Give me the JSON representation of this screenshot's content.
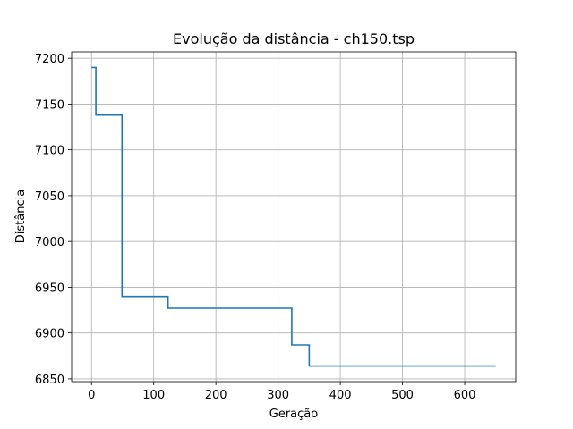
{
  "chart_data": {
    "type": "line",
    "title": "Evolução da distância - ch150.tsp",
    "xlabel": "Geração",
    "ylabel": "Distância",
    "xlim": [
      -32,
      682
    ],
    "ylim": [
      6847,
      7207
    ],
    "xticks": [
      0,
      100,
      200,
      300,
      400,
      500,
      600
    ],
    "yticks": [
      6850,
      6900,
      6950,
      7000,
      7050,
      7100,
      7150,
      7200
    ],
    "grid": true,
    "series": [
      {
        "color": "#1f77b4",
        "x": [
          0,
          7,
          7,
          49,
          49,
          123,
          123,
          322,
          322,
          350,
          350,
          650
        ],
        "y": [
          7190,
          7190,
          7138,
          7138,
          6940,
          6940,
          6927,
          6927,
          6887,
          6887,
          6864,
          6864
        ]
      }
    ]
  }
}
